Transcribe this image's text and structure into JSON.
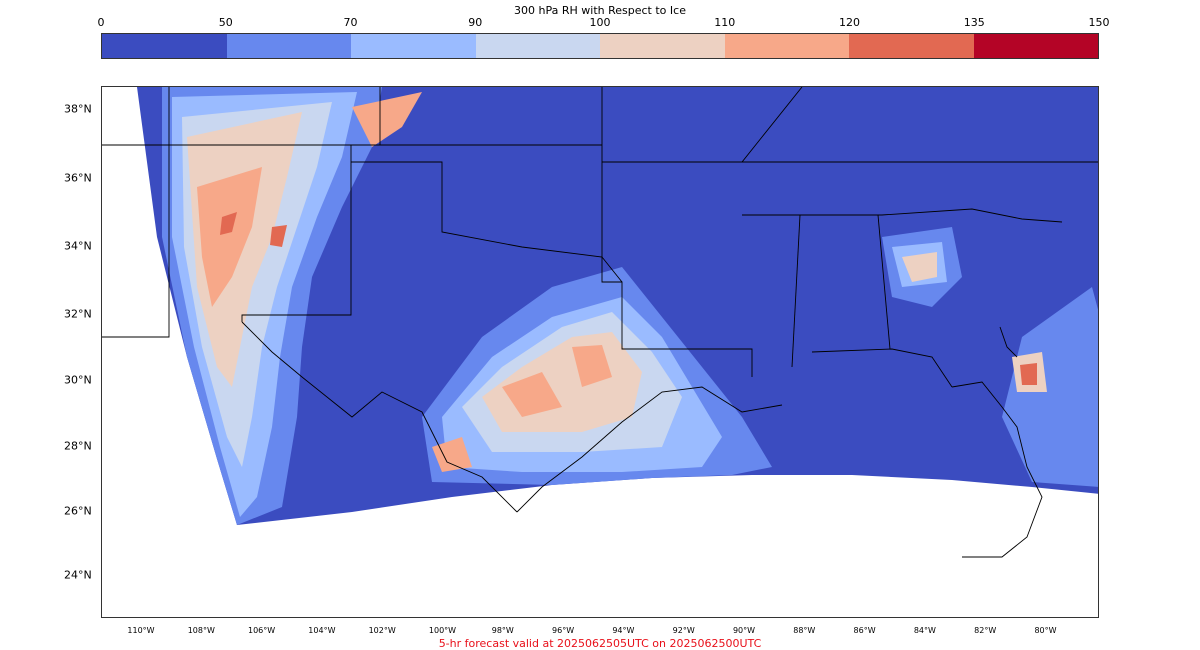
{
  "colorbar": {
    "title": "300 hPa RH with Respect to Ice",
    "ticks": [
      "0",
      "50",
      "70",
      "90",
      "100",
      "110",
      "120",
      "135",
      "150"
    ],
    "colors": [
      "#3b4cc0",
      "#6788ee",
      "#9abbff",
      "#c9d7f0",
      "#edd1c2",
      "#f7a889",
      "#e26952",
      "#b40426"
    ]
  },
  "map": {
    "lat_labels": [
      "38°N",
      "36°N",
      "34°N",
      "32°N",
      "30°N",
      "28°N",
      "26°N",
      "24°N"
    ],
    "lon_labels": [
      "110°W",
      "108°W",
      "106°W",
      "104°W",
      "102°W",
      "100°W",
      "98°W",
      "96°W",
      "94°W",
      "92°W",
      "90°W",
      "88°W",
      "86°W",
      "84°W",
      "82°W",
      "80°W"
    ],
    "background_color": "#3b4cc0",
    "border_color": "#000000"
  },
  "caption": "5-hr forecast valid at 2025062505UTC on 2025062500UTC"
}
